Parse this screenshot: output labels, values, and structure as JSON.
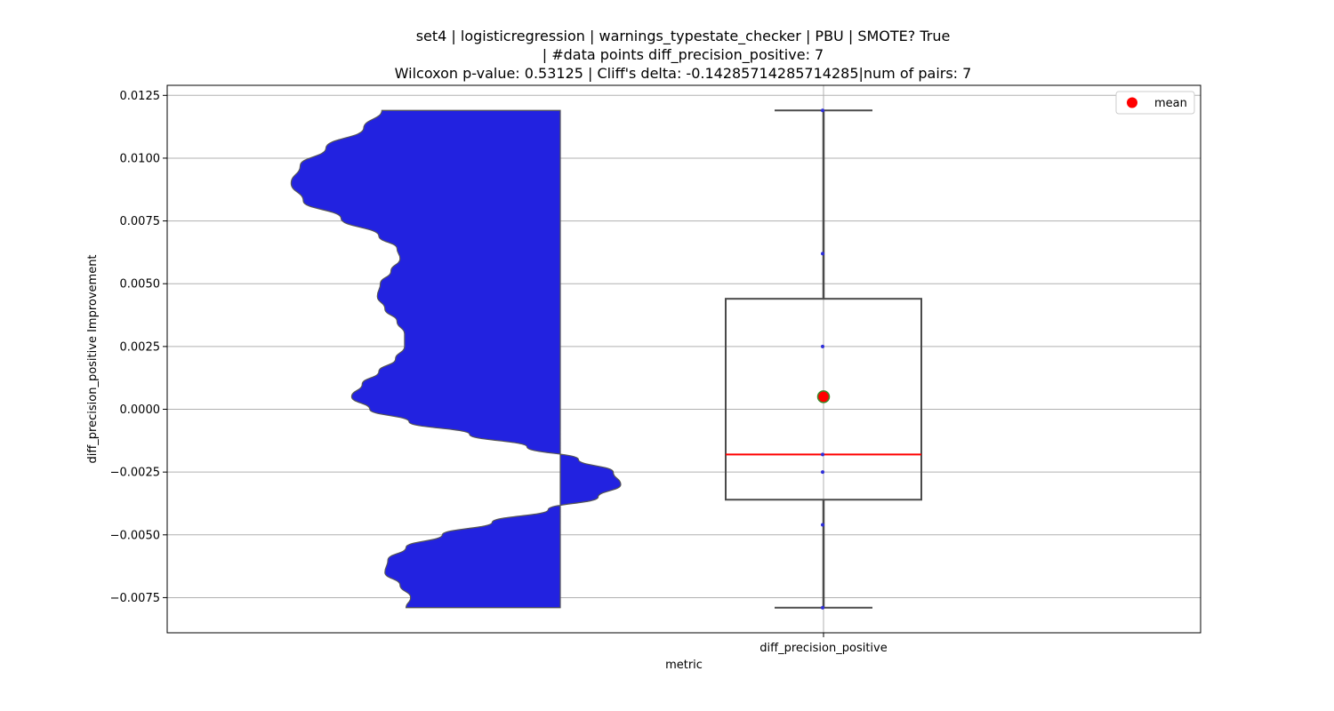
{
  "chart_data": {
    "type": "box",
    "title_lines": [
      "set4 | logisticregression | warnings_typestate_checker | PBU | SMOTE? True",
      "| #data points diff_precision_positive: 7",
      "Wilcoxon p-value: 0.53125 | Cliff's delta: -0.14285714285714285|num of pairs: 7"
    ],
    "xlabel": "metric",
    "ylabel": "diff_precision_positive Improvement",
    "category": "diff_precision_positive",
    "ylim": [
      -0.0089,
      0.0129
    ],
    "yticks": [
      -0.0075,
      -0.005,
      -0.0025,
      0.0,
      0.0025,
      0.005,
      0.0075,
      0.01,
      0.0125
    ],
    "ytick_labels": [
      "−0.0075",
      "−0.0050",
      "−0.0025",
      "0.0000",
      "0.0025",
      "0.0050",
      "0.0075",
      "0.0100",
      "0.0125"
    ],
    "grid": true,
    "legend": {
      "position": "top-right",
      "label": "mean"
    },
    "points": [
      0.0119,
      0.0062,
      0.0025,
      -0.0018,
      -0.0025,
      -0.0046,
      -0.0079
    ],
    "box": {
      "whisker_low": -0.0079,
      "q1": -0.0036,
      "median": -0.0018,
      "q3": 0.0044,
      "whisker_high": 0.0119,
      "mean": 0.0005
    },
    "violin_density": [
      [
        0.0119,
        0.18
      ],
      [
        0.0112,
        0.3
      ],
      [
        0.0104,
        0.55
      ],
      [
        0.0097,
        0.72
      ],
      [
        0.009,
        0.78
      ],
      [
        0.0083,
        0.7
      ],
      [
        0.0076,
        0.45
      ],
      [
        0.0069,
        0.2
      ],
      [
        0.0064,
        0.08
      ],
      [
        0.006,
        0.06
      ],
      [
        0.0055,
        0.12
      ],
      [
        0.005,
        0.19
      ],
      [
        0.0045,
        0.21
      ],
      [
        0.004,
        0.16
      ],
      [
        0.0035,
        0.08
      ],
      [
        0.003,
        0.03
      ],
      [
        0.0025,
        0.03
      ],
      [
        0.002,
        0.09
      ],
      [
        0.0015,
        0.2
      ],
      [
        0.001,
        0.31
      ],
      [
        0.0005,
        0.38
      ],
      [
        0.0,
        0.26
      ],
      [
        -0.0005,
        0.0
      ],
      [
        -0.001,
        -0.4
      ],
      [
        -0.0015,
        -0.78
      ],
      [
        -0.002,
        -1.12
      ],
      [
        -0.0025,
        -1.35
      ],
      [
        -0.003,
        -1.4
      ],
      [
        -0.0035,
        -1.25
      ],
      [
        -0.004,
        -0.92
      ],
      [
        -0.0045,
        -0.55
      ],
      [
        -0.005,
        -0.22
      ],
      [
        -0.0055,
        0.02
      ],
      [
        -0.006,
        0.14
      ],
      [
        -0.0065,
        0.16
      ],
      [
        -0.007,
        0.06
      ],
      [
        -0.0075,
        -0.01
      ],
      [
        -0.0079,
        0.02
      ]
    ],
    "colors": {
      "violin_fill": "#2222e0",
      "box_edge": "#4a4a4a",
      "median": "#ff0000",
      "mean_fill": "#ff0000",
      "mean_edge": "#3a8a2a",
      "points": "#2f2fd9",
      "grid": "#b0b0b0"
    }
  }
}
